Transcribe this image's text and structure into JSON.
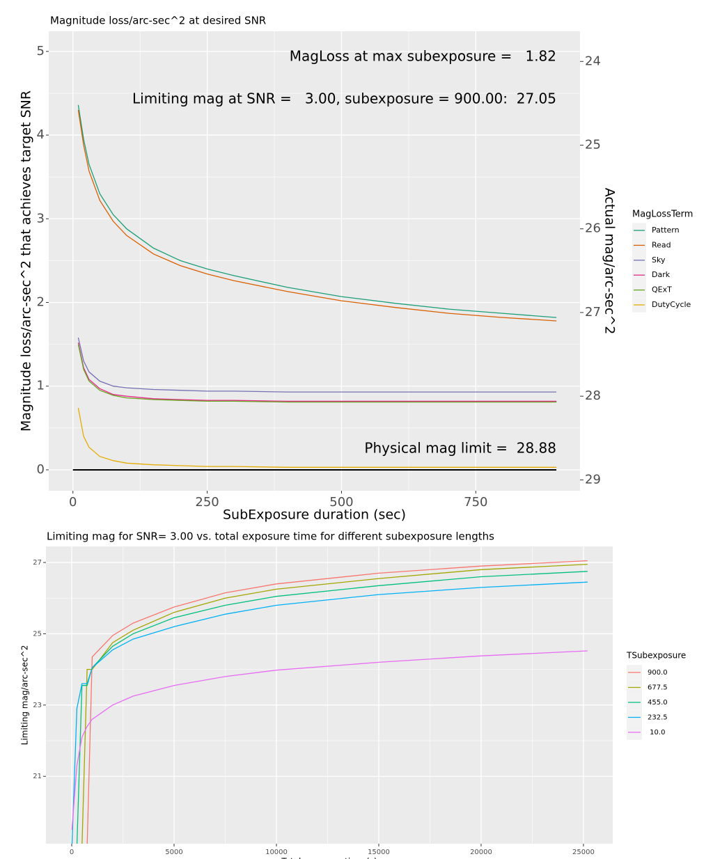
{
  "chart_data": [
    {
      "type": "line",
      "title": "Magnitude loss/arc-sec^2 at desired SNR",
      "xlabel": "SubExposure duration (sec)",
      "ylabel": "Magnitude loss/arc-sec^2 that achieves target SNR",
      "y2label": "Actual mag/arc-sec^2",
      "legend_title": "MagLossTerm",
      "annotations": [
        "MagLoss at max subexposure =   1.82",
        "Limiting mag at SNR =   3.00, subexposure = 900.00:  27.05",
        "Physical mag limit =  28.88"
      ],
      "xlim": [
        -45,
        944
      ],
      "xticks": [
        0,
        250,
        500,
        750
      ],
      "ylim": [
        -0.25,
        5.24
      ],
      "yticks": [
        0,
        1,
        2,
        3,
        4,
        5
      ],
      "y2lim": [
        29.13,
        23.64
      ],
      "y2ticks": [
        24,
        25,
        26,
        27,
        28,
        29
      ],
      "grid": true,
      "hline": {
        "y": 0,
        "x": [
          0,
          900
        ]
      },
      "x": [
        10,
        20,
        30,
        50,
        75,
        100,
        150,
        200,
        250,
        300,
        400,
        500,
        600,
        700,
        800,
        900
      ],
      "series": [
        {
          "name": "Pattern",
          "color": "#1b9e77",
          "values": [
            4.36,
            3.95,
            3.65,
            3.3,
            3.05,
            2.88,
            2.65,
            2.5,
            2.4,
            2.32,
            2.18,
            2.07,
            1.99,
            1.92,
            1.87,
            1.82
          ]
        },
        {
          "name": "Read",
          "color": "#d95f02",
          "values": [
            4.3,
            3.88,
            3.57,
            3.22,
            2.97,
            2.8,
            2.58,
            2.44,
            2.34,
            2.26,
            2.13,
            2.02,
            1.94,
            1.87,
            1.82,
            1.78
          ]
        },
        {
          "name": "Sky",
          "color": "#7570b3",
          "values": [
            1.58,
            1.3,
            1.17,
            1.06,
            1.0,
            0.98,
            0.96,
            0.95,
            0.94,
            0.94,
            0.93,
            0.93,
            0.93,
            0.93,
            0.93,
            0.93
          ]
        },
        {
          "name": "Dark",
          "color": "#e7298a",
          "values": [
            1.52,
            1.22,
            1.08,
            0.97,
            0.9,
            0.88,
            0.85,
            0.84,
            0.83,
            0.83,
            0.82,
            0.82,
            0.82,
            0.82,
            0.82,
            0.82
          ]
        },
        {
          "name": "QExT",
          "color": "#66a61e",
          "values": [
            1.5,
            1.2,
            1.06,
            0.95,
            0.89,
            0.86,
            0.84,
            0.83,
            0.82,
            0.82,
            0.81,
            0.81,
            0.81,
            0.81,
            0.81,
            0.81
          ]
        },
        {
          "name": "DutyCycle",
          "color": "#e6ab02",
          "values": [
            0.74,
            0.4,
            0.27,
            0.16,
            0.11,
            0.08,
            0.06,
            0.05,
            0.04,
            0.04,
            0.03,
            0.03,
            0.03,
            0.03,
            0.03,
            0.03
          ]
        }
      ]
    },
    {
      "type": "line",
      "title": "Limiting mag for SNR= 3.00 vs. total exposure time for different subexposure lengths",
      "xlabel": "Total exposure time (s)",
      "ylabel": "Limiting mag/arc-sec^2",
      "legend_title": "TSubexposure",
      "xlim": [
        -1259,
        26430
      ],
      "xticks": [
        0,
        5000,
        10000,
        15000,
        20000,
        25000
      ],
      "ylim": [
        19.11,
        27.45
      ],
      "yticks": [
        21,
        23,
        25,
        27
      ],
      "grid": true,
      "x": [
        10,
        250,
        500,
        750,
        1000,
        2000,
        3000,
        5000,
        7500,
        10000,
        15000,
        20000,
        25200
      ],
      "series": [
        {
          "name": "900.0",
          "color": "#f8766d",
          "values": [
            19,
            19,
            19,
            19,
            24.35,
            24.95,
            25.3,
            25.75,
            26.15,
            26.4,
            26.7,
            26.9,
            27.05
          ]
        },
        {
          "name": "677.5",
          "color": "#a3a500",
          "values": [
            19,
            19,
            19,
            24.0,
            24.0,
            24.75,
            25.1,
            25.6,
            26.0,
            26.25,
            26.55,
            26.8,
            26.95
          ]
        },
        {
          "name": "455.0",
          "color": "#00bf7d",
          "values": [
            19,
            19,
            23.55,
            23.55,
            24.05,
            24.65,
            25.0,
            25.45,
            25.8,
            26.05,
            26.35,
            26.6,
            26.75
          ]
        },
        {
          "name": "232.5",
          "color": "#00b0f6",
          "values": [
            19,
            22.9,
            23.6,
            23.6,
            24.05,
            24.55,
            24.85,
            25.2,
            25.55,
            25.8,
            26.1,
            26.3,
            26.45
          ]
        },
        {
          "name": " 10.0",
          "color": "#e76bf3",
          "values": [
            19.5,
            21.3,
            22.1,
            22.4,
            22.6,
            23.0,
            23.25,
            23.55,
            23.8,
            23.98,
            24.2,
            24.38,
            24.52
          ]
        }
      ]
    }
  ]
}
